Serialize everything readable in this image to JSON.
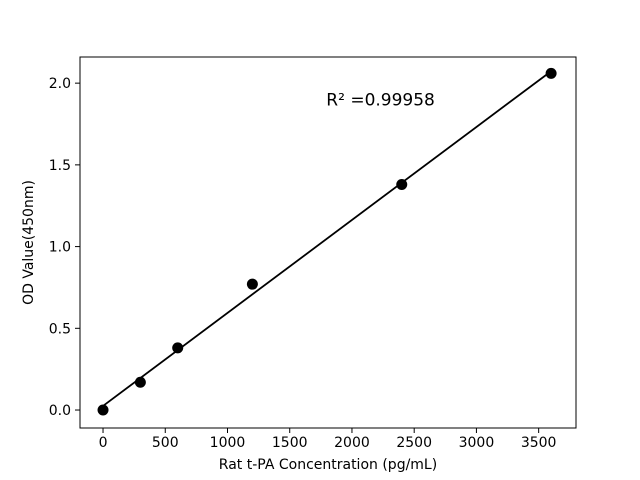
{
  "chart_data": {
    "type": "scatter",
    "title": "",
    "xlabel": "Rat t-PA Concentration (pg/mL)",
    "ylabel": "OD Value(450nm)",
    "series": [
      {
        "name": "standard-curve-points",
        "x": [
          0,
          300,
          600,
          1200,
          2400,
          3600
        ],
        "y": [
          0.0,
          0.17,
          0.38,
          0.77,
          1.38,
          2.06
        ]
      }
    ],
    "fit_line": {
      "name": "linear-fit",
      "x": [
        0,
        3600
      ],
      "y": [
        0.025,
        2.073
      ]
    },
    "annotation": {
      "text": "R² =0.99958",
      "x": 2230,
      "y": 1.9
    },
    "xticks": [
      0,
      500,
      1000,
      1500,
      2000,
      2500,
      3000,
      3500
    ],
    "xtick_labels": [
      "0",
      "500",
      "1000",
      "1500",
      "2000",
      "2500",
      "3000",
      "3500"
    ],
    "yticks": [
      0.0,
      0.5,
      1.0,
      1.5,
      2.0
    ],
    "ytick_labels": [
      "0.0",
      "0.5",
      "1.0",
      "1.5",
      "2.0"
    ],
    "xlim": [
      -185,
      3800
    ],
    "ylim": [
      -0.11,
      2.16
    ],
    "grid": false,
    "legend": null,
    "marker_color": "#000000",
    "line_color": "#000000",
    "background_color": "#ffffff",
    "axis_color": "#000000"
  }
}
